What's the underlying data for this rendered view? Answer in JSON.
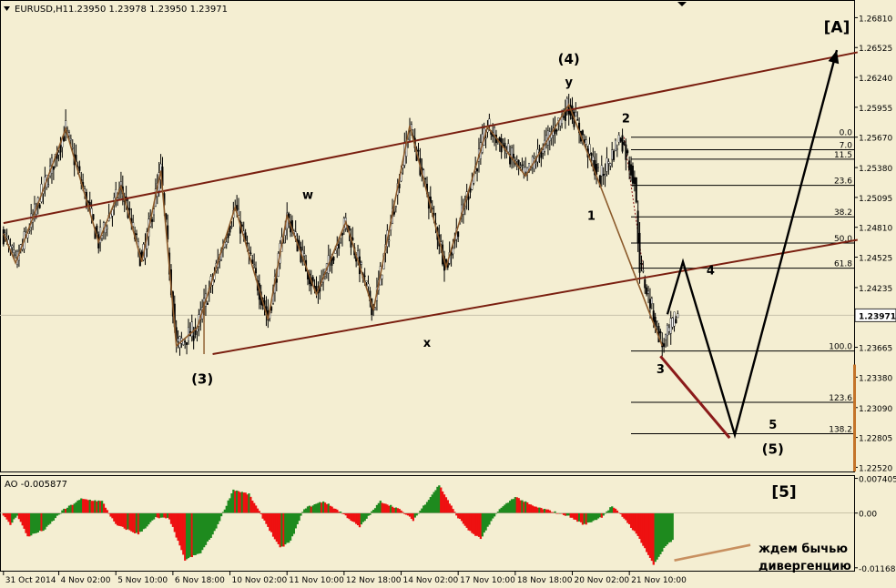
{
  "header": {
    "symbol": "EURUSD,H1",
    "ohlc": "1.23950 1.23978 1.23950 1.23971"
  },
  "colors": {
    "background": "#f4eed2",
    "candle": "#000000",
    "channel": "#7a1f10",
    "wave": "#8b5a2b",
    "projection": "#000000",
    "fib": "#000000",
    "ao_up": "#1e8a1e",
    "ao_down": "#ee1111",
    "divergence_line": "#c89060",
    "bear_line": "#8b1a1a"
  },
  "chart_data": [
    {
      "type": "candlestick",
      "panel": "price",
      "y_ticks": [
        "1.26810",
        "1.26525",
        "1.26240",
        "1.25955",
        "1.25670",
        "1.25380",
        "1.25095",
        "1.24810",
        "1.24525",
        "1.24235",
        "1.23950",
        "1.23665",
        "1.23380",
        "1.23090",
        "1.22805",
        "1.22520"
      ],
      "ylim": [
        1.2248,
        1.2697
      ],
      "current_price": "1.23971",
      "swing_path": [
        {
          "t": 0,
          "v": 1.2475
        },
        {
          "t": 7,
          "v": 1.2447
        },
        {
          "t": 17,
          "v": 1.249
        },
        {
          "t": 36,
          "v": 1.2575
        },
        {
          "t": 55,
          "v": 1.2467
        },
        {
          "t": 68,
          "v": 1.252
        },
        {
          "t": 80,
          "v": 1.2448
        },
        {
          "t": 91,
          "v": 1.2535
        },
        {
          "t": 100,
          "v": 1.2368
        },
        {
          "t": 112,
          "v": 1.2385
        },
        {
          "t": 134,
          "v": 1.25
        },
        {
          "t": 153,
          "v": 1.2393
        },
        {
          "t": 164,
          "v": 1.2492
        },
        {
          "t": 181,
          "v": 1.2417
        },
        {
          "t": 198,
          "v": 1.2486
        },
        {
          "t": 214,
          "v": 1.2402
        },
        {
          "t": 235,
          "v": 1.2578
        },
        {
          "t": 256,
          "v": 1.2443
        },
        {
          "t": 280,
          "v": 1.2577
        },
        {
          "t": 302,
          "v": 1.253
        },
        {
          "t": 327,
          "v": 1.2598
        },
        {
          "t": 345,
          "v": 1.2527
        },
        {
          "t": 357,
          "v": 1.2568
        },
        {
          "t": 365,
          "v": 1.2526
        },
        {
          "t": 368,
          "v": 1.2445
        },
        {
          "t": 381,
          "v": 1.2368
        },
        {
          "t": 390,
          "v": 1.2398
        }
      ],
      "channel_lines": [
        {
          "name": "upper",
          "from": {
            "t": 0,
            "v": 1.2485
          },
          "to": {
            "t": 494,
            "v": 1.2648
          }
        },
        {
          "name": "lower",
          "from": {
            "t": 121,
            "v": 1.236
          },
          "to": {
            "t": 494,
            "v": 1.2469
          }
        }
      ],
      "wave_lines": [
        [
          {
            "t": 0,
            "v": 1.2475
          },
          {
            "t": 7,
            "v": 1.2447
          },
          {
            "t": 17,
            "v": 1.249
          },
          {
            "t": 36,
            "v": 1.2575
          },
          {
            "t": 55,
            "v": 1.2467
          },
          {
            "t": 68,
            "v": 1.252
          },
          {
            "t": 80,
            "v": 1.2448
          },
          {
            "t": 91,
            "v": 1.2535
          },
          {
            "t": 100,
            "v": 1.2368
          },
          {
            "t": 112,
            "v": 1.2385
          },
          {
            "t": 134,
            "v": 1.25
          },
          {
            "t": 153,
            "v": 1.2393
          },
          {
            "t": 164,
            "v": 1.2492
          },
          {
            "t": 181,
            "v": 1.2417
          },
          {
            "t": 198,
            "v": 1.2486
          },
          {
            "t": 214,
            "v": 1.2402
          },
          {
            "t": 235,
            "v": 1.2578
          },
          {
            "t": 256,
            "v": 1.2443
          },
          {
            "t": 280,
            "v": 1.2577
          },
          {
            "t": 302,
            "v": 1.253
          },
          {
            "t": 327,
            "v": 1.2598
          },
          {
            "t": 381,
            "v": 1.2368
          }
        ]
      ],
      "projection_path": [
        {
          "t": 384,
          "v": 1.2398
        },
        {
          "t": 393,
          "v": 1.2448
        },
        {
          "t": 423,
          "v": 1.2283
        },
        {
          "t": 482,
          "v": 1.265
        }
      ],
      "bear_line": [
        {
          "t": 380,
          "v": 1.2358
        },
        {
          "t": 420,
          "v": 1.228
        }
      ],
      "fibonacci": {
        "levels": [
          {
            "label": "0.0",
            "v": 1.2567
          },
          {
            "label": "7.0",
            "v": 1.2555
          },
          {
            "label": "11.5",
            "v": 1.2546
          },
          {
            "label": "23.6",
            "v": 1.2521
          },
          {
            "label": "38.2",
            "v": 1.2491
          },
          {
            "label": "50.0",
            "v": 1.2466
          },
          {
            "label": "61.8",
            "v": 1.2442
          },
          {
            "label": "100.0",
            "v": 1.2363
          },
          {
            "label": "123.6",
            "v": 1.2314
          },
          {
            "label": "138.2",
            "v": 1.2284
          }
        ]
      },
      "annotations": [
        {
          "text": "[A]",
          "t": 482,
          "v": 1.2667,
          "size": 17
        },
        {
          "text": "(4)",
          "t": 327,
          "v": 1.2637,
          "size": 15
        },
        {
          "text": "y",
          "t": 327,
          "v": 1.2616,
          "size": 13
        },
        {
          "text": "2",
          "t": 360,
          "v": 1.2581,
          "size": 13
        },
        {
          "text": "w",
          "t": 176,
          "v": 1.2508,
          "size": 13
        },
        {
          "text": "1",
          "t": 340,
          "v": 1.2488,
          "size": 13
        },
        {
          "text": "4",
          "t": 409,
          "v": 1.2436,
          "size": 13
        },
        {
          "text": "x",
          "t": 245,
          "v": 1.2367,
          "size": 13
        },
        {
          "text": "(3)",
          "t": 115,
          "v": 1.2332,
          "size": 15
        },
        {
          "text": "3",
          "t": 380,
          "v": 1.2342,
          "size": 13
        },
        {
          "text": "5",
          "t": 445,
          "v": 1.2289,
          "size": 13
        },
        {
          "text": "(5)",
          "t": 445,
          "v": 1.2265,
          "size": 15
        }
      ]
    },
    {
      "type": "histogram",
      "panel": "AO",
      "title": "AO -0.005877",
      "y_ticks": [
        "0.007405",
        "0.00",
        "-0.011681"
      ],
      "ylim": [
        -0.0123,
        0.0079
      ],
      "swing_path": [
        {
          "t": 0,
          "v": -0.0005
        },
        {
          "t": 4,
          "v": -0.0025
        },
        {
          "t": 8,
          "v": -0.0004
        },
        {
          "t": 14,
          "v": -0.005
        },
        {
          "t": 24,
          "v": -0.0035
        },
        {
          "t": 34,
          "v": 0.0005
        },
        {
          "t": 45,
          "v": 0.003
        },
        {
          "t": 57,
          "v": 0.0025
        },
        {
          "t": 65,
          "v": -0.0025
        },
        {
          "t": 78,
          "v": -0.0045
        },
        {
          "t": 88,
          "v": -0.001
        },
        {
          "t": 96,
          "v": -0.0012
        },
        {
          "t": 105,
          "v": -0.01
        },
        {
          "t": 114,
          "v": -0.0085
        },
        {
          "t": 122,
          "v": -0.004
        },
        {
          "t": 133,
          "v": 0.005
        },
        {
          "t": 142,
          "v": 0.004
        },
        {
          "t": 150,
          "v": -0.001
        },
        {
          "t": 160,
          "v": -0.0075
        },
        {
          "t": 166,
          "v": -0.006
        },
        {
          "t": 174,
          "v": 0.001
        },
        {
          "t": 185,
          "v": 0.0025
        },
        {
          "t": 196,
          "v": 0.0
        },
        {
          "t": 206,
          "v": -0.003
        },
        {
          "t": 218,
          "v": 0.0025
        },
        {
          "t": 228,
          "v": 0.001
        },
        {
          "t": 237,
          "v": -0.0015
        },
        {
          "t": 252,
          "v": 0.006
        },
        {
          "t": 262,
          "v": -0.0005
        },
        {
          "t": 270,
          "v": -0.004
        },
        {
          "t": 276,
          "v": -0.0055
        },
        {
          "t": 286,
          "v": 0.0005
        },
        {
          "t": 296,
          "v": 0.0035
        },
        {
          "t": 306,
          "v": 0.0015
        },
        {
          "t": 316,
          "v": 0.0005
        },
        {
          "t": 326,
          "v": -0.0005
        },
        {
          "t": 336,
          "v": -0.0025
        },
        {
          "t": 346,
          "v": -0.0008
        },
        {
          "t": 352,
          "v": 0.0015
        },
        {
          "t": 360,
          "v": -0.0015
        },
        {
          "t": 368,
          "v": -0.0055
        },
        {
          "t": 376,
          "v": -0.011
        },
        {
          "t": 383,
          "v": -0.007
        },
        {
          "t": 387,
          "v": -0.0059
        }
      ],
      "divergence_line": [
        {
          "t": 388,
          "v": -0.0101
        },
        {
          "t": 432,
          "v": -0.0068
        }
      ],
      "notes": [
        "ждем бычью",
        "дивергенцию"
      ],
      "wave_label": "[5]"
    }
  ],
  "x_axis": {
    "labels": [
      {
        "t": 0,
        "text": "31 Oct 2014"
      },
      {
        "t": 32,
        "text": "4 Nov 02:00"
      },
      {
        "t": 65,
        "text": "5 Nov 10:00"
      },
      {
        "t": 98,
        "text": "6 Nov 18:00"
      },
      {
        "t": 131,
        "text": "10 Nov 02:00"
      },
      {
        "t": 164,
        "text": "11 Nov 10:00"
      },
      {
        "t": 197,
        "text": "12 Nov 18:00"
      },
      {
        "t": 230,
        "text": "14 Nov 02:00"
      },
      {
        "t": 263,
        "text": "17 Nov 10:00"
      },
      {
        "t": 296,
        "text": "18 Nov 18:00"
      },
      {
        "t": 329,
        "text": "20 Nov 02:00"
      },
      {
        "t": 362,
        "text": "21 Nov 10:00"
      }
    ]
  }
}
